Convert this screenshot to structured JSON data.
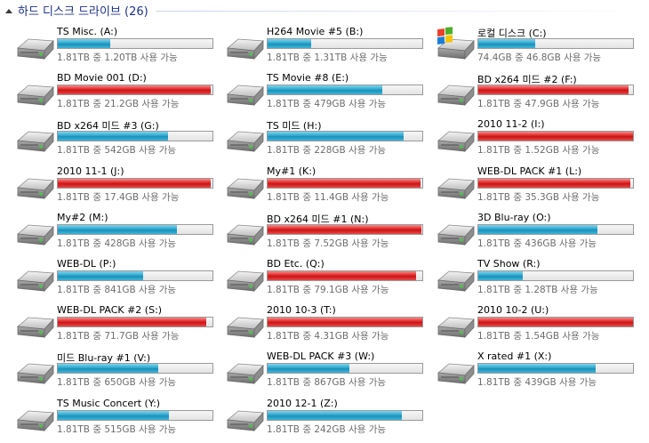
{
  "header": {
    "title": "하드 디스크 드라이브 (26)"
  },
  "colors": {
    "normal_bar": "#26a0cc",
    "full_bar": "#d81e1e",
    "header_text": "#1e3287"
  },
  "drives": [
    {
      "name": "TS Misc. (A:)",
      "space": "1.81TB 중 1.20TB 사용 가능",
      "used": 0.34,
      "full": false,
      "icon": "hard-drive-icon"
    },
    {
      "name": "H264 Movie #5 (B:)",
      "space": "1.81TB 중 1.31TB 사용 가능",
      "used": 0.28,
      "full": false,
      "icon": "hard-drive-icon"
    },
    {
      "name": "로컬 디스크 (C:)",
      "space": "74.4GB 중 46.8GB 사용 가능",
      "used": 0.37,
      "full": false,
      "icon": "windows-drive-icon"
    },
    {
      "name": "BD Movie 001 (D:)",
      "space": "1.81TB 중 21.2GB 사용 가능",
      "used": 0.99,
      "full": true,
      "icon": "hard-drive-icon"
    },
    {
      "name": "TS Movie #8 (E:)",
      "space": "1.81TB 중 479GB 사용 가능",
      "used": 0.74,
      "full": false,
      "icon": "hard-drive-icon"
    },
    {
      "name": "BD x264 미드 #2 (F:)",
      "space": "1.81TB 중 47.9GB 사용 가능",
      "used": 0.97,
      "full": true,
      "icon": "hard-drive-icon"
    },
    {
      "name": "BD x264 미드 #3 (G:)",
      "space": "1.81TB 중 542GB 사용 가능",
      "used": 0.71,
      "full": false,
      "icon": "hard-drive-icon"
    },
    {
      "name": "TS 미드 (H:)",
      "space": "1.81TB 중 228GB 사용 가능",
      "used": 0.88,
      "full": false,
      "icon": "hard-drive-icon"
    },
    {
      "name": "2010 11-2 (I:)",
      "space": "1.81TB 중 1.52GB 사용 가능",
      "used": 0.999,
      "full": true,
      "icon": "hard-drive-icon"
    },
    {
      "name": "2010 11-1 (J:)",
      "space": "1.81TB 중 17.4GB 사용 가능",
      "used": 0.99,
      "full": true,
      "icon": "hard-drive-icon"
    },
    {
      "name": "My#1 (K:)",
      "space": "1.81TB 중 11.4GB 사용 가능",
      "used": 0.99,
      "full": true,
      "icon": "hard-drive-icon"
    },
    {
      "name": "WEB-DL PACK #1 (L:)",
      "space": "1.81TB 중 35.3GB 사용 가능",
      "used": 0.98,
      "full": true,
      "icon": "hard-drive-icon"
    },
    {
      "name": "My#2 (M:)",
      "space": "1.81TB 중 428GB 사용 가능",
      "used": 0.77,
      "full": false,
      "icon": "hard-drive-icon"
    },
    {
      "name": "BD x264 미드 #1 (N:)",
      "space": "1.81TB 중 7.52GB 사용 가능",
      "used": 0.996,
      "full": true,
      "icon": "hard-drive-icon"
    },
    {
      "name": "3D Blu-ray (O:)",
      "space": "1.81TB 중 436GB 사용 가능",
      "used": 0.77,
      "full": false,
      "icon": "hard-drive-icon"
    },
    {
      "name": "WEB-DL (P:)",
      "space": "1.81TB 중 841GB 사용 가능",
      "used": 0.55,
      "full": false,
      "icon": "hard-drive-icon"
    },
    {
      "name": "BD Etc. (Q:)",
      "space": "1.81TB 중 79.1GB 사용 가능",
      "used": 0.96,
      "full": true,
      "icon": "hard-drive-icon"
    },
    {
      "name": "TV Show (R:)",
      "space": "1.81TB 중 1.28TB 사용 가능",
      "used": 0.29,
      "full": false,
      "icon": "hard-drive-icon"
    },
    {
      "name": "WEB-DL PACK #2 (S:)",
      "space": "1.81TB 중 71.7GB 사용 가능",
      "used": 0.96,
      "full": true,
      "icon": "hard-drive-icon"
    },
    {
      "name": "2010 10-3 (T:)",
      "space": "1.81TB 중 4.31GB 사용 가능",
      "used": 0.998,
      "full": true,
      "icon": "hard-drive-icon"
    },
    {
      "name": "2010 10-2 (U:)",
      "space": "1.81TB 중 1.54GB 사용 가능",
      "used": 0.999,
      "full": true,
      "icon": "hard-drive-icon"
    },
    {
      "name": "미드 Blu-ray #1 (V:)",
      "space": "1.81TB 중 650GB 사용 가능",
      "used": 0.65,
      "full": false,
      "icon": "hard-drive-icon"
    },
    {
      "name": "WEB-DL PACK #3 (W:)",
      "space": "1.81TB 중 867GB 사용 가능",
      "used": 0.53,
      "full": false,
      "icon": "hard-drive-icon"
    },
    {
      "name": "X rated #1 (X:)",
      "space": "1.81TB 중 439GB 사용 가능",
      "used": 0.76,
      "full": false,
      "icon": "hard-drive-icon"
    },
    {
      "name": "TS Music Concert (Y:)",
      "space": "1.81TB 중 515GB 사용 가능",
      "used": 0.72,
      "full": false,
      "icon": "hard-drive-icon"
    },
    {
      "name": "2010 12-1 (Z:)",
      "space": "1.81TB 중 242GB 사용 가능",
      "used": 0.87,
      "full": false,
      "icon": "hard-drive-icon"
    }
  ]
}
